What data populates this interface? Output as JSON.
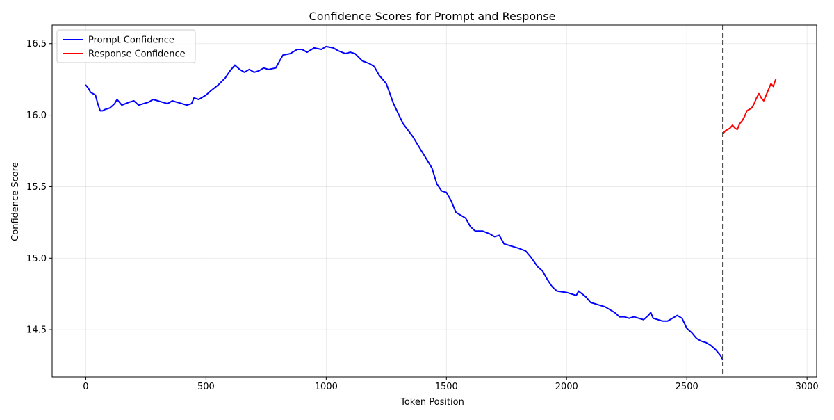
{
  "chart_data": {
    "type": "line",
    "title": "Confidence Scores for Prompt and Response",
    "xlabel": "Token Position",
    "ylabel": "Confidence Score",
    "xlim": [
      -140,
      3040
    ],
    "ylim": [
      14.17,
      16.63
    ],
    "xticks": [
      0,
      500,
      1000,
      1500,
      2000,
      2500,
      3000
    ],
    "xtick_labels": [
      "0",
      "500",
      "1000",
      "1500",
      "2000",
      "2500",
      "3000"
    ],
    "yticks": [
      14.5,
      15.0,
      15.5,
      16.0,
      16.5
    ],
    "ytick_labels": [
      "14.5",
      "15.0",
      "15.5",
      "16.0",
      "16.5"
    ],
    "grid": true,
    "legend_position": "top-left",
    "boundary_x": 2650,
    "series": [
      {
        "name": "Prompt Confidence",
        "color": "#0000ff",
        "x": [
          0,
          10,
          20,
          40,
          50,
          60,
          70,
          80,
          100,
          120,
          130,
          150,
          180,
          200,
          220,
          240,
          260,
          280,
          300,
          320,
          340,
          360,
          380,
          400,
          420,
          440,
          450,
          470,
          500,
          520,
          550,
          580,
          600,
          620,
          640,
          660,
          680,
          700,
          720,
          740,
          760,
          790,
          820,
          850,
          880,
          900,
          920,
          950,
          980,
          1000,
          1030,
          1050,
          1080,
          1100,
          1120,
          1150,
          1180,
          1200,
          1220,
          1250,
          1280,
          1320,
          1360,
          1400,
          1440,
          1460,
          1480,
          1500,
          1520,
          1540,
          1560,
          1580,
          1600,
          1620,
          1650,
          1680,
          1700,
          1720,
          1740,
          1760,
          1800,
          1830,
          1850,
          1880,
          1900,
          1920,
          1940,
          1960,
          2000,
          2040,
          2050,
          2080,
          2100,
          2120,
          2140,
          2160,
          2180,
          2200,
          2220,
          2240,
          2260,
          2280,
          2300,
          2320,
          2340,
          2350,
          2360,
          2380,
          2400,
          2420,
          2440,
          2460,
          2480,
          2500,
          2520,
          2540,
          2560,
          2580,
          2600,
          2620,
          2640,
          2650
        ],
        "y": [
          16.21,
          16.19,
          16.16,
          16.14,
          16.08,
          16.03,
          16.03,
          16.04,
          16.05,
          16.08,
          16.11,
          16.07,
          16.09,
          16.1,
          16.07,
          16.08,
          16.09,
          16.11,
          16.1,
          16.09,
          16.08,
          16.1,
          16.09,
          16.08,
          16.07,
          16.08,
          16.12,
          16.11,
          16.14,
          16.17,
          16.21,
          16.26,
          16.31,
          16.35,
          16.32,
          16.3,
          16.32,
          16.3,
          16.31,
          16.33,
          16.32,
          16.33,
          16.42,
          16.43,
          16.46,
          16.46,
          16.44,
          16.47,
          16.46,
          16.48,
          16.47,
          16.45,
          16.43,
          16.44,
          16.43,
          16.38,
          16.36,
          16.34,
          16.28,
          16.22,
          16.08,
          15.94,
          15.85,
          15.74,
          15.63,
          15.52,
          15.47,
          15.46,
          15.4,
          15.32,
          15.3,
          15.28,
          15.22,
          15.19,
          15.19,
          15.17,
          15.15,
          15.16,
          15.1,
          15.09,
          15.07,
          15.05,
          15.01,
          14.94,
          14.91,
          14.85,
          14.8,
          14.77,
          14.76,
          14.74,
          14.77,
          14.73,
          14.69,
          14.68,
          14.67,
          14.66,
          14.64,
          14.62,
          14.59,
          14.59,
          14.58,
          14.59,
          14.58,
          14.57,
          14.6,
          14.62,
          14.58,
          14.57,
          14.56,
          14.56,
          14.58,
          14.6,
          14.58,
          14.51,
          14.48,
          14.44,
          14.42,
          14.41,
          14.39,
          14.36,
          14.32,
          14.29
        ]
      },
      {
        "name": "Response Confidence",
        "color": "#ff0000",
        "x": [
          2650,
          2660,
          2670,
          2680,
          2690,
          2700,
          2710,
          2720,
          2730,
          2740,
          2750,
          2760,
          2770,
          2780,
          2790,
          2800,
          2810,
          2820,
          2830,
          2840,
          2850,
          2860,
          2865,
          2870
        ],
        "y": [
          15.87,
          15.89,
          15.9,
          15.91,
          15.93,
          15.91,
          15.9,
          15.94,
          15.96,
          15.99,
          16.03,
          16.04,
          16.05,
          16.08,
          16.12,
          16.15,
          16.12,
          16.1,
          16.14,
          16.18,
          16.22,
          16.2,
          16.23,
          16.25
        ]
      }
    ]
  }
}
